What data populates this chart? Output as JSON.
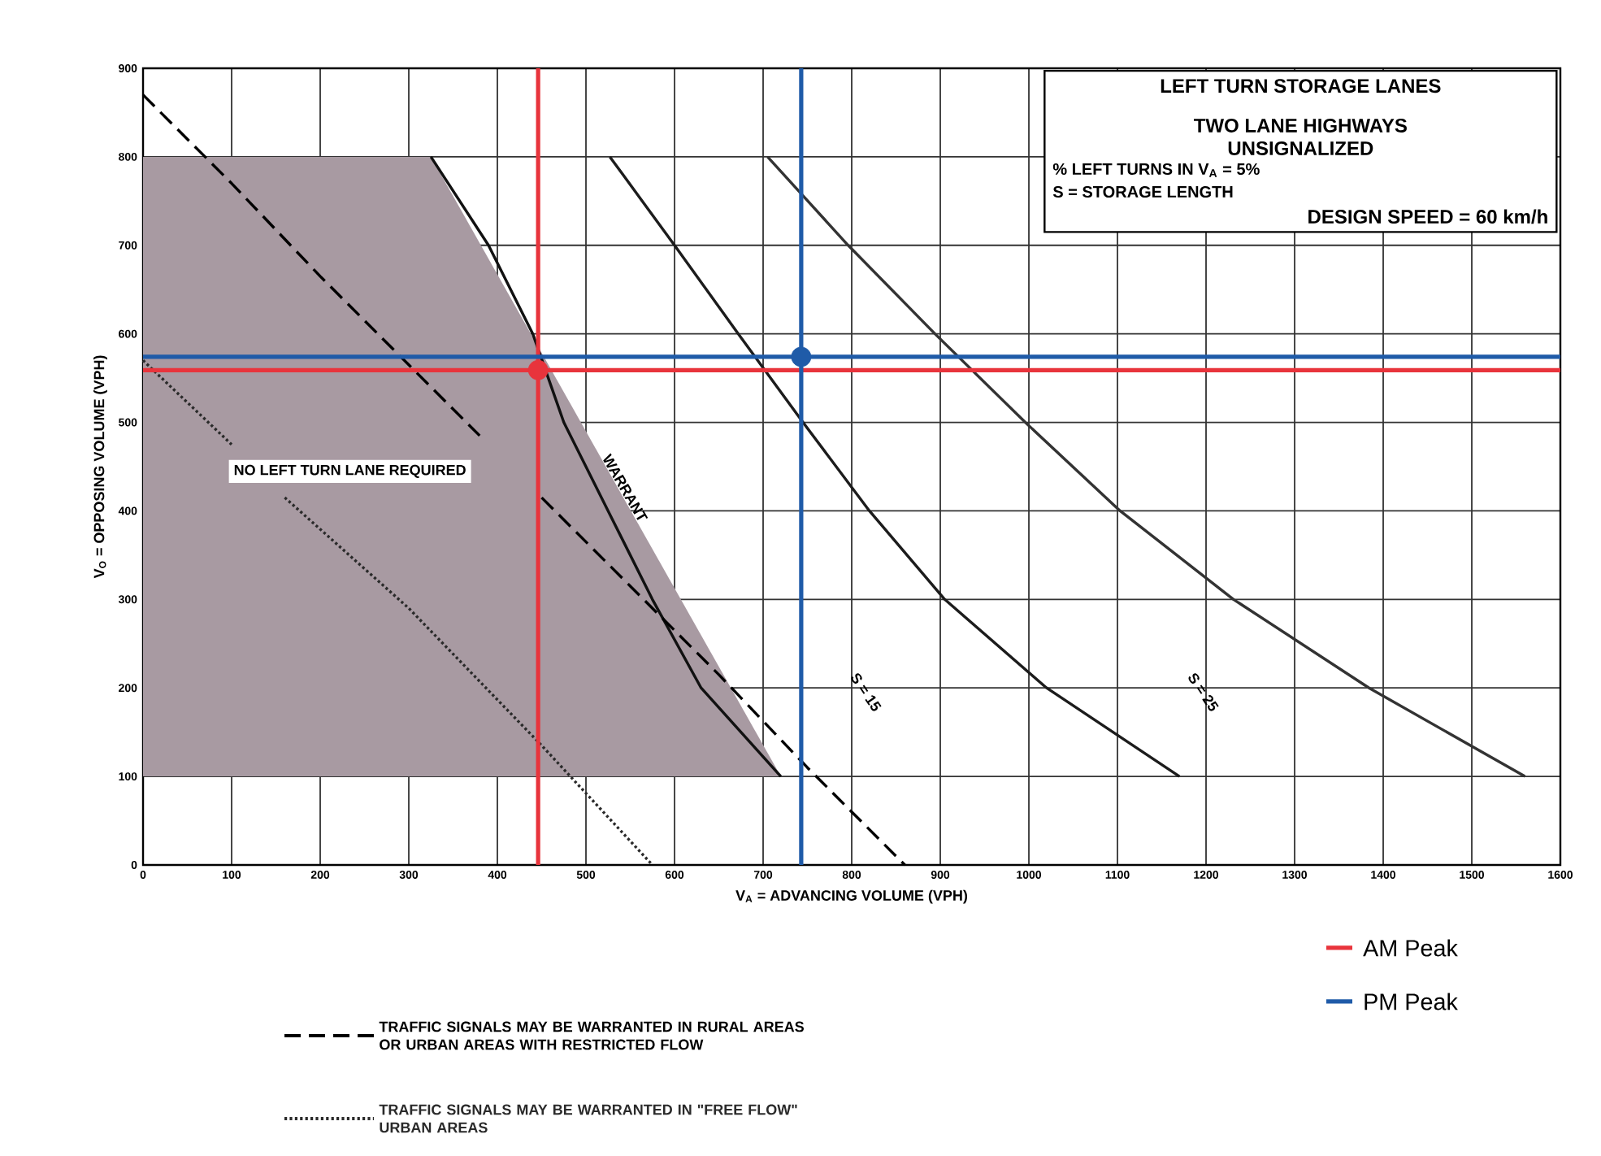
{
  "chart_data": {
    "type": "line",
    "title": "LEFT TURN STORAGE LANES",
    "subtitle": "TWO LANE HIGHWAYS UNSIGNALIZED",
    "xlabel": "V$_{A}$ = ADVANCING VOLUME (VPH)",
    "ylabel": "V$_{O}$ = OPPOSING VOLUME (VPH)",
    "xlim": [
      0,
      1600
    ],
    "ylim": [
      0,
      900
    ],
    "xticks": [
      0,
      100,
      200,
      300,
      400,
      500,
      600,
      700,
      800,
      900,
      1000,
      1100,
      1200,
      1300,
      1400,
      1500,
      1600
    ],
    "yticks": [
      0,
      100,
      200,
      300,
      400,
      500,
      600,
      700,
      800,
      900
    ],
    "grid": true,
    "legend": "bottom",
    "series": [
      {
        "color": "#111111",
        "line_style": "solid",
        "x": [
          325,
          390,
          440,
          475,
          525,
          575,
          630,
          720
        ],
        "values": [
          800,
          700,
          600,
          500,
          400,
          300,
          200,
          100
        ]
      },
      {
        "color": "#1c1c1c",
        "line_style": "solid",
        "x": [
          527,
          600,
          672,
          745,
          820,
          905,
          1020,
          1170
        ],
        "values": [
          800,
          700,
          600,
          500,
          400,
          300,
          200,
          100
        ]
      },
      {
        "color": "#333333",
        "line_style": "solid",
        "x": [
          705,
          796,
          894,
          996,
          1103,
          1231,
          1384,
          1560
        ],
        "values": [
          800,
          700,
          600,
          500,
          400,
          300,
          200,
          100
        ]
      },
      {
        "name": "TRAFFIC SIGNALS MAY BE WARRANTED IN RURAL AREAS OR URBAN AREAS WITH RESTRICTED FLOW",
        "color": "#000000",
        "line_style": "dashed",
        "x": [
          0,
          100,
          200,
          300,
          380,
          415,
          450,
          550,
          650,
          750,
          860
        ],
        "values": [
          870,
          770,
          665,
          565,
          485,
          null,
          415,
          315,
          215,
          110,
          0
        ]
      },
      {
        "name": "TRAFFIC SIGNALS MAY BE WARRANTED IN \"FREE FLOW\" URBAN AREAS",
        "color": "#2a2a2a",
        "line_style": "dotted",
        "x": [
          0,
          100,
          130,
          160,
          300,
          450,
          575
        ],
        "values": [
          570,
          475,
          null,
          415,
          290,
          135,
          0
        ]
      },
      {
        "name": "AM Peak",
        "type": "scatter",
        "marker": "circle",
        "color": "#e8343c",
        "x": [
          446
        ],
        "values": [
          559
        ]
      },
      {
        "name": "PM Peak",
        "type": "scatter",
        "marker": "circle",
        "color": "#1f5ba8",
        "x": [
          743
        ],
        "values": [
          574
        ]
      },
      {
        "type": "area",
        "color": "#a89aa2",
        "x": [
          0,
          0,
          325,
          720
        ],
        "values": [
          100,
          800,
          800,
          100
        ]
      }
    ],
    "ref_lines": [
      {
        "axis": "x",
        "value": 446,
        "color": "#e8343c"
      },
      {
        "axis": "y",
        "value": 559,
        "color": "#e8343c"
      },
      {
        "axis": "x",
        "value": 743,
        "color": "#1f5ba8"
      },
      {
        "axis": "y",
        "value": 574,
        "color": "#1f5ba8"
      }
    ],
    "annotations": [
      "NO LEFT TURN LANE REQUIRED",
      "WARRANT",
      "S = 15",
      "S = 25",
      "% LEFT TURNS IN V$_{A}$ = 5%",
      "S = STORAGE LENGTH",
      "DESIGN SPEED = 60 km/h"
    ]
  }
}
